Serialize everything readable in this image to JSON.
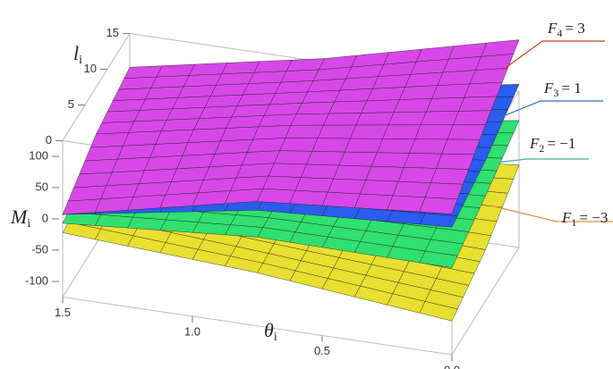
{
  "chart_data": {
    "type": "surface3d",
    "xlabel": {
      "main": "θ",
      "sub": "i"
    },
    "ylabel": {
      "main": "l",
      "sub": "i"
    },
    "zlabel": {
      "main": "M",
      "sub": "i"
    },
    "xlim": [
      0,
      1.5
    ],
    "ylim": [
      0,
      15
    ],
    "zlim": [
      -125,
      125
    ],
    "xticks": [
      {
        "value": 0,
        "label": "0.0"
      },
      0.5,
      {
        "value": 1,
        "label": "1.0"
      },
      1.5
    ],
    "yticks": [
      0,
      5,
      10,
      15
    ],
    "zticks": [
      -100,
      -50,
      0,
      50,
      100
    ],
    "x": [
      0,
      0.75,
      1.5
    ],
    "y": [
      0,
      7.5,
      15
    ],
    "series": [
      {
        "label": {
          "symbol": "F",
          "sub": "1",
          "rest": "= −3"
        },
        "color": "#e8e030",
        "line_color": "#e09040",
        "values": [
          [
            -71,
            -43,
            7
          ],
          [
            -40,
            -33,
            -26
          ],
          [
            -22,
            -7,
            0
          ]
        ]
      },
      {
        "label": {
          "symbol": "F",
          "sub": "2",
          "rest": "= −1"
        },
        "color": "#30e070",
        "line_color": "#40b0a0",
        "values": [
          [
            14,
            43,
            78
          ],
          [
            17,
            24,
            31
          ],
          [
            -7,
            14,
            21
          ]
        ]
      },
      {
        "label": {
          "symbol": "F",
          "sub": "3",
          "rest": "= 1"
        },
        "color": "#2a5cf0",
        "line_color": "#3070c0",
        "values": [
          [
            79,
            100,
            136
          ],
          [
            60,
            74,
            81
          ],
          [
            7,
            36,
            42
          ]
        ]
      },
      {
        "label": {
          "symbol": "F",
          "sub": "4",
          "rest": "= 3"
        },
        "color": "#d848e8",
        "line_color": "#d04020",
        "values": [
          [
            100,
            157,
            207
          ],
          [
            74,
            110,
            131
          ],
          [
            7,
            50,
            71
          ]
        ]
      }
    ]
  }
}
